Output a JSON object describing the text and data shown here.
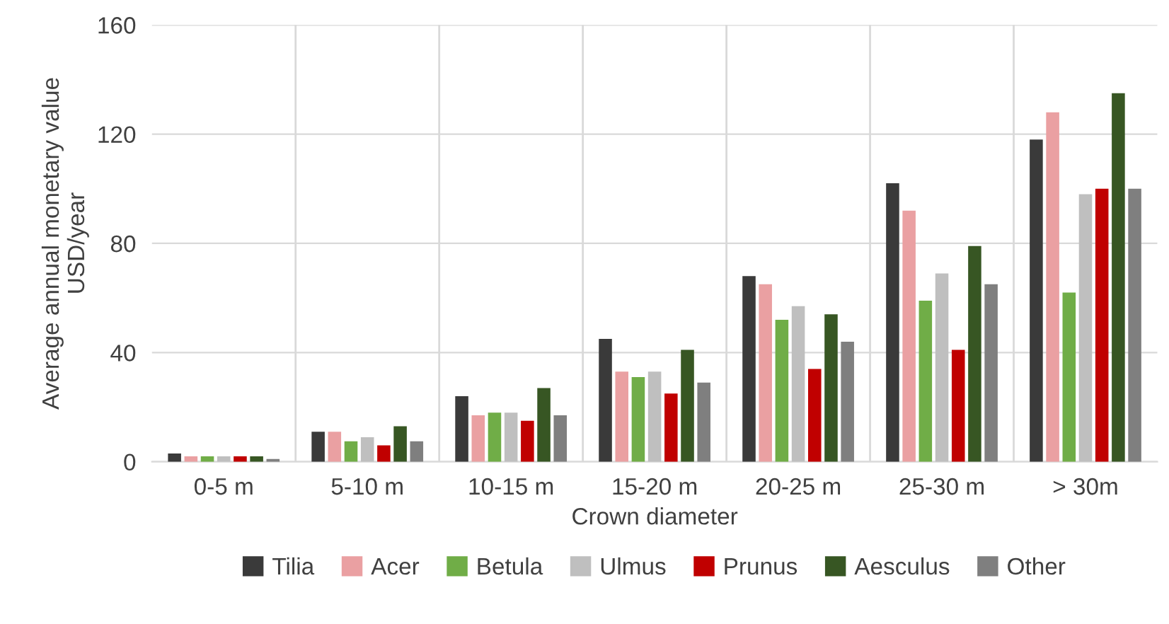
{
  "chart_data": {
    "type": "bar",
    "xlabel": "Crown diameter",
    "ylabel": "Average annual monetary value\nUSD/year",
    "categories": [
      "0-5 m",
      "5-10 m",
      "10-15 m",
      "15-20 m",
      "20-25 m",
      "25-30 m",
      "> 30m"
    ],
    "series": [
      {
        "name": "Tilia",
        "color": "#3a3a3a",
        "values": [
          3,
          11,
          24,
          45,
          68,
          102,
          118
        ]
      },
      {
        "name": "Acer",
        "color": "#eaa0a2",
        "values": [
          2,
          11,
          17,
          33,
          65,
          92,
          128
        ]
      },
      {
        "name": "Betula",
        "color": "#70ad47",
        "values": [
          2,
          7.5,
          18,
          31,
          52,
          59,
          62
        ]
      },
      {
        "name": "Ulmus",
        "color": "#bfbfbf",
        "values": [
          2,
          9,
          18,
          33,
          57,
          69,
          98
        ]
      },
      {
        "name": "Prunus",
        "color": "#c00000",
        "values": [
          2,
          6,
          15,
          25,
          34,
          41,
          100
        ]
      },
      {
        "name": "Aesculus",
        "color": "#375623",
        "values": [
          2,
          13,
          27,
          41,
          54,
          79,
          135
        ]
      },
      {
        "name": "Other",
        "color": "#7f7f7f",
        "values": [
          1,
          7.5,
          17,
          29,
          44,
          65,
          100
        ]
      }
    ],
    "ylim": [
      0,
      160
    ],
    "yticks": [
      0,
      40,
      80,
      120,
      160
    ],
    "grid": true,
    "legend": "bottom"
  }
}
